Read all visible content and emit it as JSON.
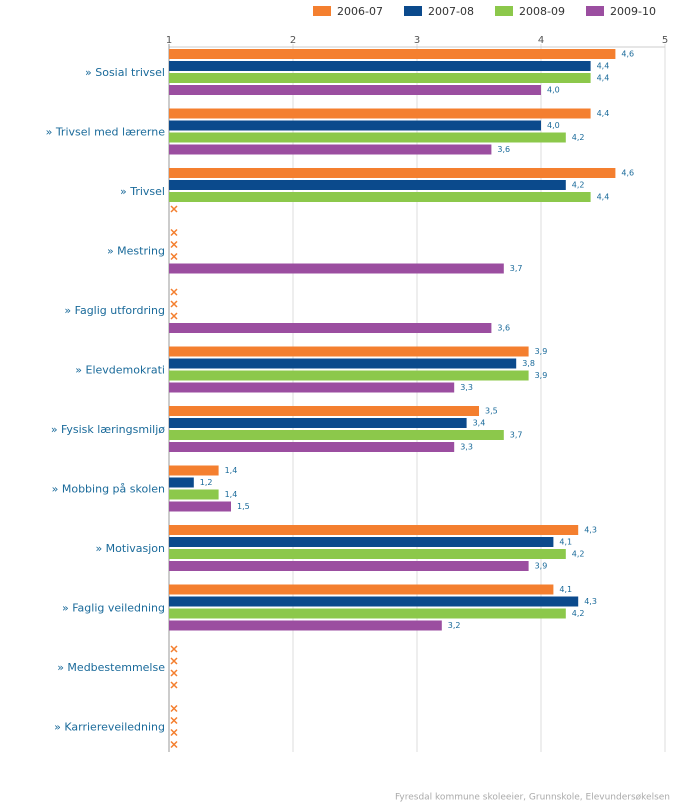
{
  "chart_data": {
    "type": "bar",
    "orientation": "horizontal",
    "categories": [
      "» Sosial trivsel",
      "» Trivsel med lærerne",
      "» Trivsel",
      "» Mestring",
      "» Faglig utfordring",
      "» Elevdemokrati",
      "» Fysisk læringsmiljø",
      "» Mobbing på skolen",
      "» Motivasjon",
      "» Faglig veiledning",
      "» Medbestemmelse",
      "» Karriereveiledning"
    ],
    "series": [
      {
        "name": "2006-07",
        "color": "#f47f2f",
        "values": [
          4.6,
          4.4,
          4.6,
          null,
          null,
          3.9,
          3.5,
          1.4,
          4.3,
          4.1,
          null,
          null
        ],
        "value_labels": [
          "4,6",
          "4,4",
          "4,6",
          null,
          null,
          "3,9",
          "3,5",
          "1,4",
          "4,3",
          "4,1",
          null,
          null
        ]
      },
      {
        "name": "2007-08",
        "color": "#0b4a8c",
        "values": [
          4.4,
          4.0,
          4.2,
          null,
          null,
          3.8,
          3.4,
          1.2,
          4.1,
          4.3,
          null,
          null
        ],
        "value_labels": [
          "4,4",
          "4,0",
          "4,2",
          null,
          null,
          "3,8",
          "3,4",
          "1,2",
          "4,1",
          "4,3",
          null,
          null
        ]
      },
      {
        "name": "2008-09",
        "color": "#8cc84b",
        "values": [
          4.4,
          4.2,
          4.4,
          null,
          null,
          3.9,
          3.7,
          1.4,
          4.2,
          4.2,
          null,
          null
        ],
        "value_labels": [
          "4,4",
          "4,2",
          "4,4",
          null,
          null,
          "3,9",
          "3,7",
          "1,4",
          "4,2",
          "4,2",
          null,
          null
        ]
      },
      {
        "name": "2009-10",
        "color": "#9b4ea0",
        "values": [
          4.0,
          3.6,
          null,
          3.7,
          3.6,
          3.3,
          3.3,
          1.5,
          3.9,
          3.2,
          null,
          null
        ],
        "value_labels": [
          "4,0",
          "3,6",
          null,
          "3,7",
          "3,6",
          "3,3",
          "3,3",
          "1,5",
          "3,9",
          "3,2",
          null,
          null
        ]
      }
    ],
    "xlim": [
      1,
      5
    ],
    "xticks": [
      1,
      2,
      3,
      4,
      5
    ],
    "grid": true,
    "legend": "top",
    "source": "Fyresdal kommune skoleeier, Grunnskole, Elevundersøkelsen"
  }
}
